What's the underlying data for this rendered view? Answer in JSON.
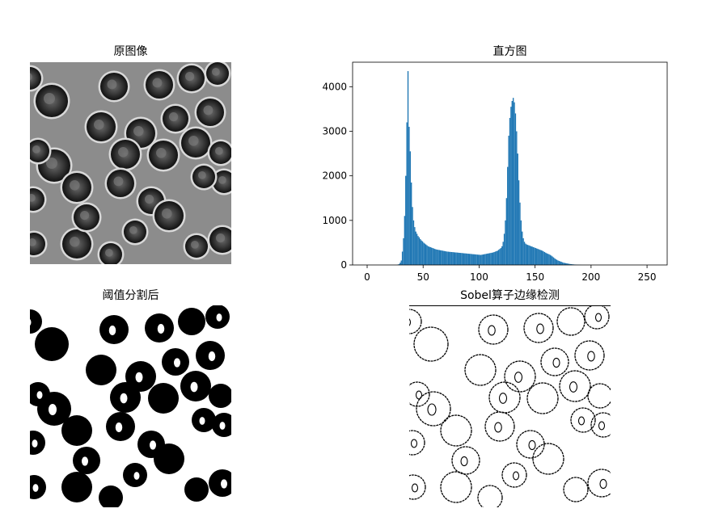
{
  "panels": {
    "original": {
      "title": "原图像"
    },
    "histogram": {
      "title": "直方图"
    },
    "threshold": {
      "title": "阈值分割后"
    },
    "edges": {
      "title": "Sobel算子边缘检测"
    }
  },
  "chart_data": {
    "type": "bar",
    "title": "直方图",
    "xlabel": "",
    "ylabel": "",
    "xlim": [
      -13,
      268
    ],
    "ylim": [
      0,
      4550
    ],
    "xticks": [
      0,
      50,
      100,
      150,
      200,
      250
    ],
    "yticks": [
      0,
      1000,
      2000,
      3000,
      4000
    ],
    "bar_color": "#1f77b4",
    "grid": false,
    "bins_start": 0,
    "bin_width": 1,
    "values": [
      0,
      0,
      0,
      0,
      0,
      0,
      0,
      0,
      0,
      0,
      0,
      0,
      0,
      0,
      0,
      0,
      0,
      0,
      0,
      0,
      0,
      0,
      0,
      0,
      0,
      0,
      0,
      10,
      20,
      50,
      100,
      300,
      600,
      1100,
      2000,
      3200,
      4350,
      3100,
      2550,
      1850,
      1300,
      1000,
      850,
      750,
      700,
      650,
      620,
      580,
      550,
      530,
      500,
      480,
      460,
      440,
      420,
      410,
      400,
      390,
      380,
      370,
      360,
      350,
      345,
      340,
      335,
      330,
      325,
      320,
      315,
      310,
      305,
      300,
      298,
      295,
      292,
      290,
      288,
      285,
      282,
      280,
      278,
      275,
      272,
      270,
      268,
      265,
      262,
      260,
      258,
      255,
      252,
      250,
      248,
      245,
      242,
      240,
      238,
      235,
      232,
      230,
      228,
      225,
      230,
      235,
      240,
      245,
      250,
      255,
      260,
      265,
      270,
      275,
      280,
      290,
      300,
      310,
      320,
      340,
      360,
      380,
      420,
      520,
      700,
      1000,
      1500,
      2200,
      2900,
      3300,
      3550,
      3680,
      3750,
      3650,
      3400,
      3000,
      2500,
      1900,
      1400,
      1000,
      750,
      600,
      520,
      480,
      460,
      450,
      440,
      430,
      420,
      410,
      400,
      390,
      380,
      370,
      360,
      350,
      340,
      330,
      320,
      305,
      290,
      275,
      260,
      250,
      240,
      225,
      210,
      190,
      170,
      150,
      130,
      115,
      100,
      90,
      80,
      70,
      60,
      50,
      45,
      40,
      35,
      30,
      25,
      20,
      18,
      15,
      12,
      10,
      8,
      6,
      5,
      4,
      3,
      2,
      1,
      1,
      1,
      0,
      0,
      0,
      0,
      0,
      0,
      0,
      0,
      0,
      0,
      0,
      0,
      0,
      0,
      0,
      0,
      0,
      0,
      0,
      0,
      0,
      0,
      0,
      0,
      0,
      0,
      0,
      0,
      0,
      0,
      0,
      0,
      0,
      0,
      0,
      0,
      0,
      0,
      0,
      0,
      0
    ]
  }
}
